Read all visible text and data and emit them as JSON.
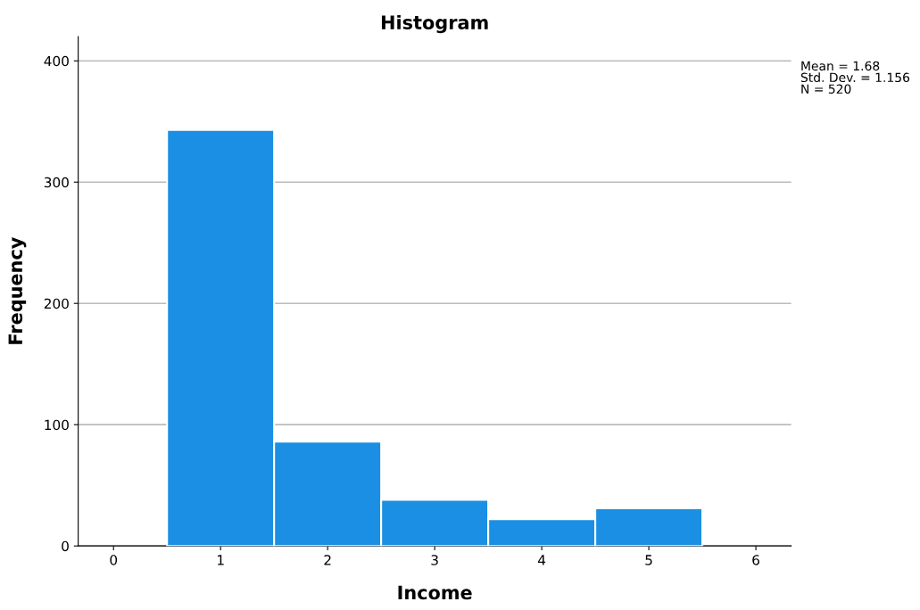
{
  "chart_data": {
    "type": "histogram",
    "title": "Histogram",
    "xlabel": "Income",
    "ylabel": "Frequency",
    "bins": [
      0.5,
      1.5,
      2.5,
      3.5,
      4.5,
      5.5
    ],
    "values": [
      343,
      86,
      38,
      22,
      31
    ],
    "color": "#1a8fe3",
    "xlim": [
      -0.33,
      6.33
    ],
    "xticks": [
      0,
      1,
      2,
      3,
      4,
      5,
      6
    ],
    "ylim": [
      0,
      420
    ],
    "yticks": [
      0,
      100,
      200,
      300,
      400
    ],
    "grid": "y",
    "legend": false,
    "annotations": [
      "Mean = 1.68\nStd. Dev. = 1.156\nN = 520"
    ]
  }
}
